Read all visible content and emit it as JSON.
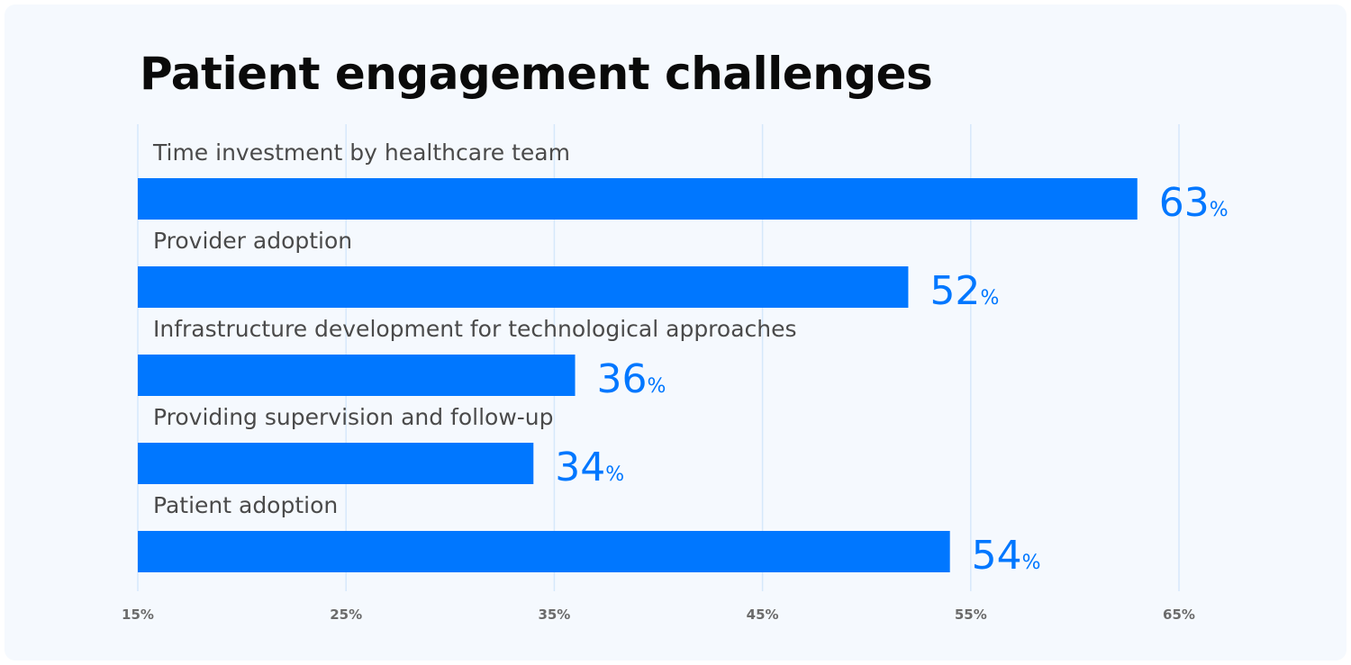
{
  "chart_data": {
    "type": "bar",
    "orientation": "horizontal",
    "title": "Patient engagement challenges",
    "categories": [
      "Time investment by healthcare team",
      "Provider adoption",
      "Infrastructure development for technological approaches",
      "Providing supervision and follow-up",
      "Patient adoption"
    ],
    "values": [
      63,
      52,
      36,
      34,
      54
    ],
    "value_suffix": "%",
    "xlim": [
      15,
      65
    ],
    "xticks": [
      "15%",
      "25%",
      "35%",
      "45%",
      "55%",
      "65%"
    ],
    "grid": "vertical",
    "colors": {
      "bar": "#0077ff",
      "value_label": "#0077ff",
      "grid": "#d6e8fb",
      "tick_label": "#6b6b6b",
      "category_label": "#4a4a4a",
      "background": "#f5f9fe"
    }
  }
}
